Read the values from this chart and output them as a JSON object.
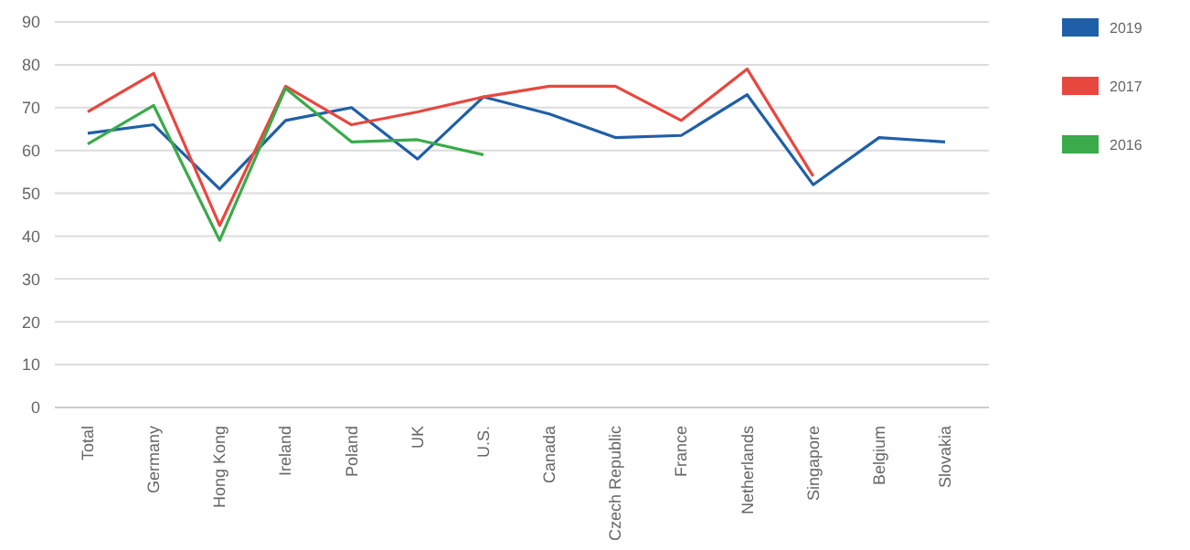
{
  "chart_data": {
    "type": "line",
    "categories": [
      "Total",
      "Germany",
      "Hong Kong",
      "Ireland",
      "Poland",
      "UK",
      "U.S.",
      "Canada",
      "Czech Republic",
      "France",
      "Netherlands",
      "Singapore",
      "Belgium",
      "Slovakia"
    ],
    "series": [
      {
        "name": "2019",
        "color": "#1f5fa8",
        "values": [
          64,
          66,
          51,
          67,
          70,
          58,
          72.5,
          68.5,
          63,
          63.5,
          73,
          52,
          63,
          62
        ]
      },
      {
        "name": "2017",
        "color": "#e8473f",
        "values": [
          69,
          78,
          42.5,
          75,
          66,
          69,
          72.5,
          75,
          75,
          67,
          79,
          54,
          null,
          null
        ]
      },
      {
        "name": "2016",
        "color": "#3aaa4a",
        "values": [
          61.5,
          70.5,
          39,
          74.5,
          62,
          62.5,
          59,
          null,
          null,
          null,
          null,
          null,
          null,
          null
        ]
      }
    ],
    "ylim": [
      0,
      90
    ],
    "yticks": [
      0,
      10,
      20,
      30,
      40,
      50,
      60,
      70,
      80,
      90
    ],
    "grid": "y",
    "legend": "right",
    "marker": "none",
    "line_style": "solid"
  }
}
